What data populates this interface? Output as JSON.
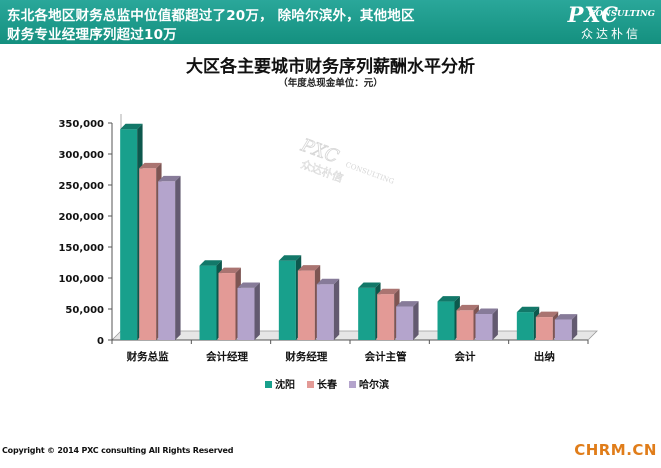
{
  "header": {
    "line1": "东北各地区财务总监中位值都超过了20万， 除哈尔滨外，其他地区",
    "line2": "财务专业经理序列超过10万"
  },
  "brand": {
    "name": "PXC",
    "consulting": "CONSULTING",
    "cn": "众达朴信"
  },
  "watermark": {
    "name": "PXC",
    "consulting": "CONSULTING",
    "cn": "众达朴信"
  },
  "colors": {
    "header_bg": "#1a9a8a",
    "series": [
      "#18a08c",
      "#e39a96",
      "#b4a4cc"
    ]
  },
  "chart_data": {
    "type": "bar",
    "title": "大区各主要城市财务序列薪酬水平分析",
    "subtitle": "（年度总现金单位：元）",
    "categories": [
      "财务总监",
      "会计经理",
      "财务经理",
      "会计主管",
      "会计",
      "出纳"
    ],
    "series": [
      {
        "name": "沈阳",
        "values": [
          340000,
          120000,
          128000,
          84000,
          62000,
          45000
        ]
      },
      {
        "name": "长春",
        "values": [
          277000,
          108000,
          112000,
          74000,
          48000,
          37000
        ]
      },
      {
        "name": "哈尔滨",
        "values": [
          256000,
          84000,
          90000,
          54000,
          42000,
          33000
        ]
      }
    ],
    "ylim": [
      0,
      350000
    ],
    "yticks": [
      "0",
      "50,000",
      "100,000",
      "150,000",
      "200,000",
      "250,000",
      "300,000",
      "350,000"
    ],
    "grid": false,
    "legend_position": "bottom",
    "style": "3d-bar"
  },
  "footer": {
    "copyright": "Copyright © 2014  PXC consulting All Rights Reserved",
    "site": "CHRM.CN"
  }
}
